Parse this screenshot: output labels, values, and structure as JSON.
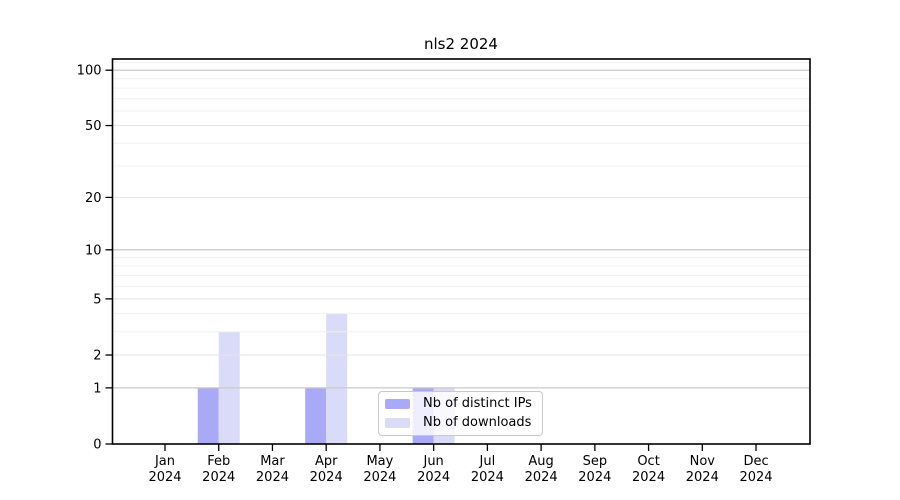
{
  "page": {
    "background": "#ffffff"
  },
  "chart_data": {
    "type": "bar",
    "title": "nls2 2024",
    "categories": [
      "Jan 2024",
      "Feb 2024",
      "Mar 2024",
      "Apr 2024",
      "May 2024",
      "Jun 2024",
      "Jul 2024",
      "Aug 2024",
      "Sep 2024",
      "Oct 2024",
      "Nov 2024",
      "Dec 2024"
    ],
    "series": [
      {
        "name": "Nb of distinct IPs",
        "color": "#a9a9f7",
        "values": [
          0,
          1,
          0,
          1,
          0,
          1,
          0,
          0,
          0,
          0,
          0,
          0
        ]
      },
      {
        "name": "Nb of downloads",
        "color": "#dadaf9",
        "values": [
          0,
          3,
          0,
          4,
          0,
          1,
          0,
          0,
          0,
          0,
          0,
          0
        ]
      }
    ],
    "y_scale": "log10(1+y)",
    "y_ticks_labeled": [
      0,
      1,
      2,
      5,
      10,
      20,
      50,
      100
    ],
    "y_ticks_minor": [
      3,
      4,
      6,
      7,
      8,
      9,
      30,
      40,
      60,
      70,
      80,
      90,
      110
    ],
    "ylim": [
      0,
      115
    ],
    "grid": true,
    "legend_position": "inside lower center-right"
  },
  "legend": {
    "items": [
      {
        "label": "Nb of distinct IPs"
      },
      {
        "label": "Nb of downloads"
      }
    ]
  },
  "colors": {
    "axis": "#000000",
    "text": "#000000",
    "grid_minor": "#f0f0f0",
    "grid_major": "#e4e4e4",
    "grid_power10": "#c9c9c9",
    "legend_border": "#c9c9c9"
  }
}
